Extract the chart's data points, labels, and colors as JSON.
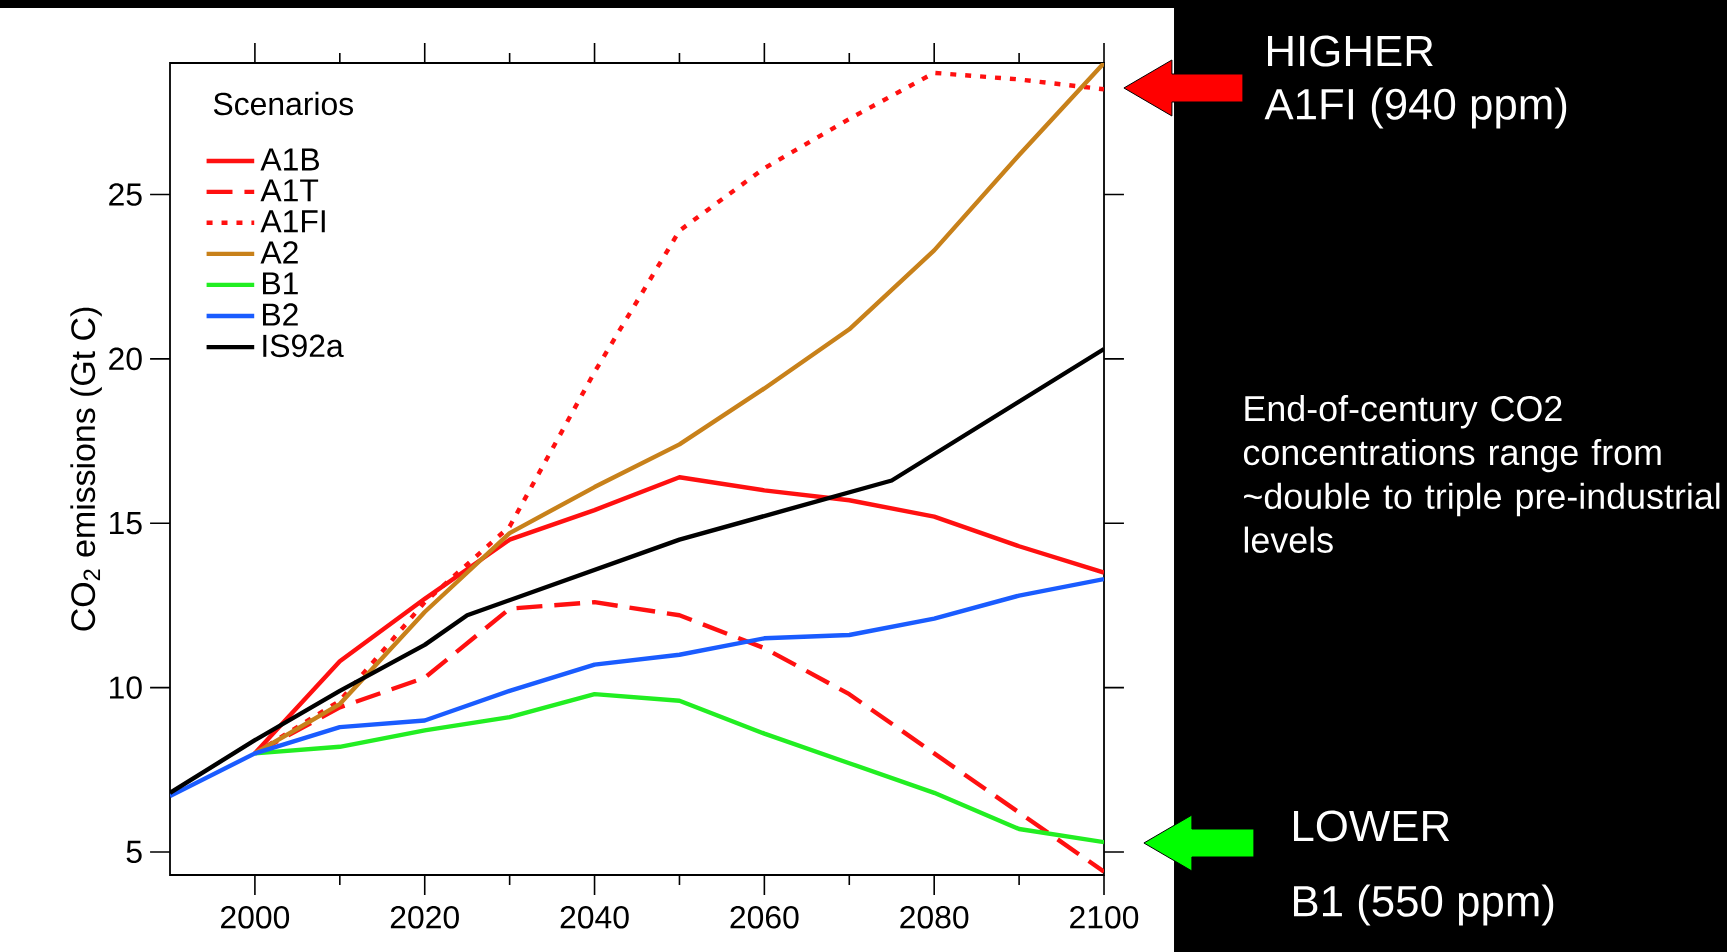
{
  "chart_data": {
    "type": "line",
    "ylabel": "CO$_{2}$ emissions (Gt C)",
    "legend_title": "Scenarios",
    "legend": "top left",
    "x": [
      2000,
      2010,
      2020,
      2030,
      2040,
      2050,
      2060,
      2070,
      2080,
      2090,
      2100
    ],
    "series": [
      {
        "name": "A1B",
        "color": "#ff1010",
        "line_style": "solid",
        "values": [
          8.0,
          10.8,
          12.7,
          14.5,
          15.4,
          16.4,
          16.0,
          15.7,
          15.2,
          14.3,
          13.5
        ]
      },
      {
        "name": "A1T",
        "color": "#ff1010",
        "line_style": "dashed",
        "values": [
          8.0,
          9.4,
          10.3,
          12.4,
          12.6,
          12.2,
          11.2,
          9.8,
          8.0,
          6.2,
          4.4
        ]
      },
      {
        "name": "A1FI",
        "color": "#ff1010",
        "line_style": "dotted",
        "values": [
          8.0,
          9.6,
          12.6,
          14.9,
          19.6,
          23.9,
          25.8,
          27.3,
          28.7,
          28.5,
          28.2
        ]
      },
      {
        "name": "A2",
        "color": "#c8811a",
        "line_style": "solid",
        "values": [
          8.0,
          9.5,
          12.3,
          14.7,
          16.1,
          17.4,
          19.1,
          20.9,
          23.3,
          26.2,
          29.0
        ]
      },
      {
        "name": "B1",
        "color": "#22ee22",
        "line_style": "solid",
        "values": [
          8.0,
          8.2,
          8.7,
          9.1,
          9.8,
          9.6,
          8.6,
          7.7,
          6.8,
          5.7,
          5.3
        ]
      },
      {
        "name": "B2",
        "color": "#1a5cff",
        "line_style": "solid",
        "x": [
          1990,
          2000,
          2010,
          2020,
          2030,
          2040,
          2050,
          2060,
          2070,
          2080,
          2090,
          2100
        ],
        "values": [
          6.7,
          8.0,
          8.8,
          9.0,
          9.9,
          10.7,
          11.0,
          11.5,
          11.6,
          12.1,
          12.8,
          13.3
        ]
      },
      {
        "name": "IS92a",
        "color": "#000000",
        "line_style": "solid",
        "x": [
          1990,
          2000,
          2010,
          2020,
          2025,
          2050,
          2075,
          2100
        ],
        "values": [
          6.8,
          8.4,
          9.9,
          11.3,
          12.2,
          14.5,
          16.3,
          20.3
        ]
      }
    ],
    "xlim": [
      1990,
      2100
    ],
    "ylim": [
      4.3,
      29
    ],
    "xticks": [
      2000,
      2020,
      2040,
      2060,
      2080,
      2100
    ],
    "yticks": [
      5,
      10,
      15,
      20,
      25
    ],
    "grid": false,
    "marker": "none",
    "annotations": [
      "HIGHER",
      "A1FI (940 ppm)",
      "End-of-century CO2 concentrations range from ~double to triple pre-industrial levels",
      "LOWER",
      "B1 (550 ppm)"
    ]
  }
}
